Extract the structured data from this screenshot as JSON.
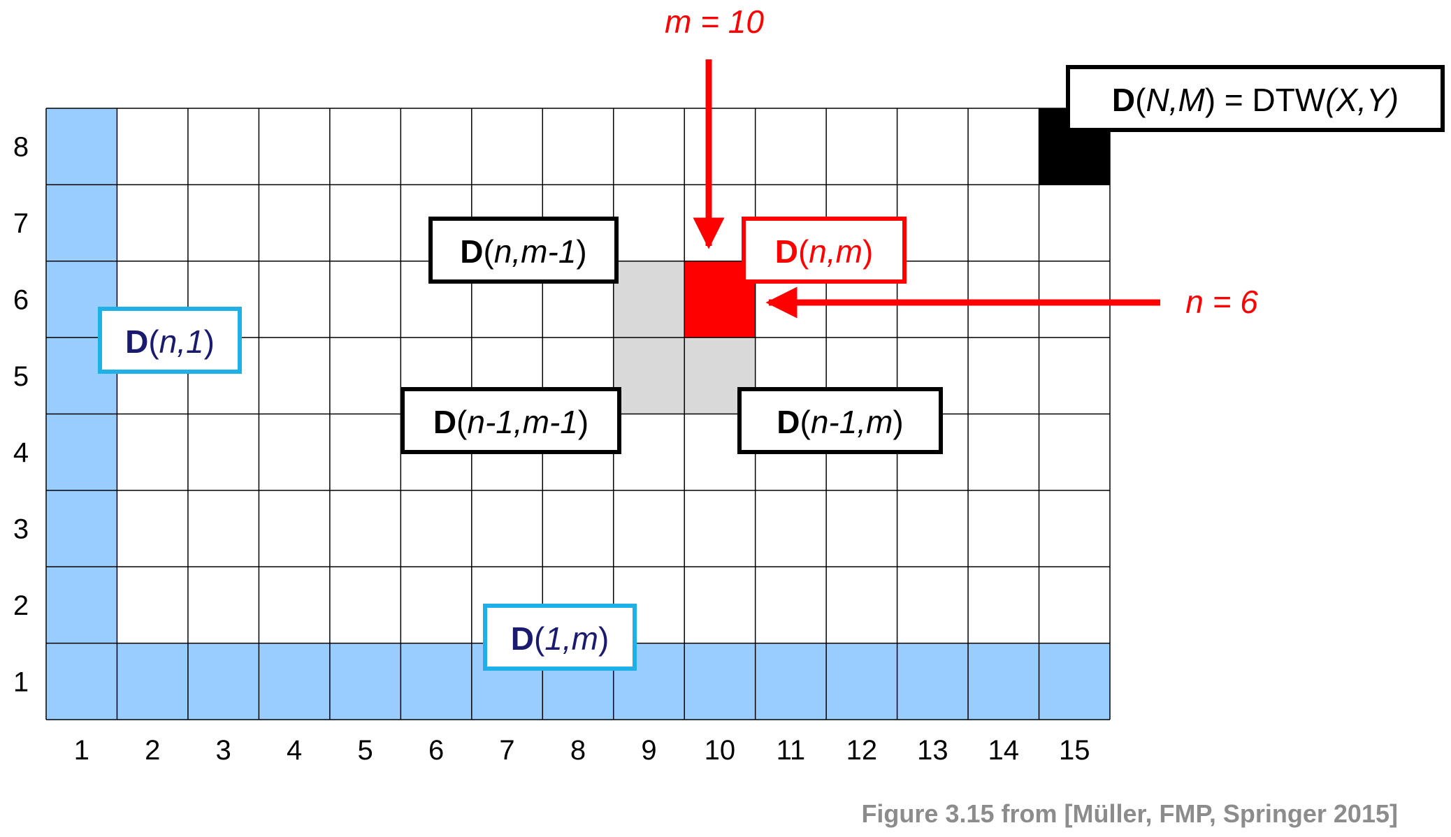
{
  "grid": {
    "columns": 15,
    "rows": 8,
    "colors": {
      "base": "#ffffff",
      "boundary": "#99ccff",
      "neighbor": "#d9d9d9",
      "current": "#ff0000",
      "final": "#000000",
      "line": "#000000"
    },
    "x_ticks": [
      "1",
      "2",
      "3",
      "4",
      "5",
      "6",
      "7",
      "8",
      "9",
      "10",
      "11",
      "12",
      "13",
      "14",
      "15"
    ],
    "y_ticks": [
      "1",
      "2",
      "3",
      "4",
      "5",
      "6",
      "7",
      "8"
    ],
    "cells": [
      {
        "col": 1,
        "row": "all",
        "fill": "boundary"
      },
      {
        "col": "all",
        "row": 1,
        "fill": "boundary"
      },
      {
        "col": 9,
        "row": 6,
        "fill": "neighbor"
      },
      {
        "col": 9,
        "row": 5,
        "fill": "neighbor"
      },
      {
        "col": 10,
        "row": 5,
        "fill": "neighbor"
      },
      {
        "col": 10,
        "row": 6,
        "fill": "current"
      },
      {
        "col": 15,
        "row": 8,
        "fill": "final"
      }
    ]
  },
  "labels": {
    "final": {
      "bold": "D",
      "normal_open": "(",
      "italic": "N,M",
      "normal_mid": ") = DTW",
      "italic2": "(X,Y)",
      "close": "",
      "color": "#000000",
      "text_color": "#000000"
    },
    "left_neighbor": {
      "bold": "D",
      "normal_open": "(",
      "italic": "n,m-1",
      "close": ")",
      "color": "#000000",
      "text_color": "#000000"
    },
    "current": {
      "bold": "D",
      "normal_open": "(",
      "italic": "n,m",
      "close": ")",
      "color": "#ff0000",
      "text_color": "#ff0000"
    },
    "boundary_col": {
      "bold": "D",
      "normal_open": "(",
      "italic": "n,1",
      "close": ")",
      "color": "#1fb0e8",
      "text_color": "#1a1a6e"
    },
    "diag_neighbor": {
      "bold": "D",
      "normal_open": "(",
      "italic": "n-1,m-1",
      "close": ")",
      "color": "#000000",
      "text_color": "#000000"
    },
    "down_neighbor": {
      "bold": "D",
      "normal_open": "(",
      "italic": "n-1,m",
      "close": ")",
      "color": "#000000",
      "text_color": "#000000"
    },
    "boundary_row": {
      "bold": "D",
      "normal_open": "(",
      "italic": "1,m",
      "close": ")",
      "color": "#1fb0e8",
      "text_color": "#1a1a6e"
    }
  },
  "annotations": {
    "m_label": "m = 10",
    "n_label": "n = 6",
    "arrow_color": "#ff0000"
  },
  "credit": "Figure 3.15 from [Müller, FMP, Springer 2015]"
}
